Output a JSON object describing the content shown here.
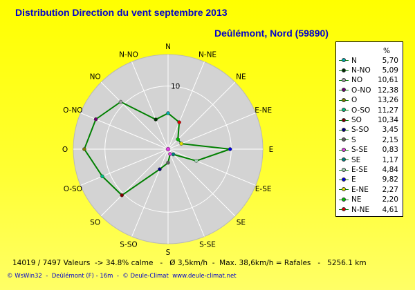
{
  "title": "Distribution Direction du vent   septembre 2013",
  "subtitle": "Deûlémont, Nord (59890)",
  "footer_line1": "14019 / 7497 Valeurs  -> 34.8% calme   -   Ø 3,5km/h  -  Max. 38,6km/h = Rafales   -   5256.1 km",
  "footer_line2": "© WsWin32  -  Deûlémont (F) - 16m  -  © Deule-Climat  www.deule-climat.net",
  "legend_unit": "%",
  "chart_data": {
    "type": "radar",
    "title": "Distribution Direction du vent   septembre 2013",
    "subtitle": "Deûlémont, Nord (59890)",
    "unit": "%",
    "rmax": 15,
    "tick_value": 10,
    "tick_label": "10",
    "directions": [
      "N",
      "N-NE",
      "NE",
      "E-NE",
      "E",
      "E-SE",
      "SE",
      "S-SE",
      "S",
      "S-SO",
      "SO",
      "O-SO",
      "O",
      "O-NO",
      "NO",
      "N-NO"
    ],
    "values": [
      5.7,
      4.61,
      2.2,
      2.27,
      9.82,
      4.84,
      1.17,
      0.83,
      2.15,
      3.45,
      10.34,
      11.27,
      13.26,
      12.38,
      10.61,
      5.09
    ],
    "colors": {
      "line": "#008000",
      "disk": "#d3d3d3",
      "axes": "#ffffff"
    },
    "legend": [
      {
        "label": "N",
        "value": "5,70",
        "color": "#00b0b0"
      },
      {
        "label": "N-NO",
        "value": "5,09",
        "color": "#003000"
      },
      {
        "label": "NO",
        "value": "10,61",
        "color": "#a0a0a0"
      },
      {
        "label": "O-NO",
        "value": "12,38",
        "color": "#700070"
      },
      {
        "label": "O",
        "value": "13,26",
        "color": "#808000"
      },
      {
        "label": "O-SO",
        "value": "11,27",
        "color": "#00c080"
      },
      {
        "label": "SO",
        "value": "10,34",
        "color": "#800000"
      },
      {
        "label": "S-SO",
        "value": "3,45",
        "color": "#000080"
      },
      {
        "label": "S",
        "value": "2,15",
        "color": "#606060"
      },
      {
        "label": "S-SE",
        "value": "0,83",
        "color": "#e040e0"
      },
      {
        "label": "SE",
        "value": "1,17",
        "color": "#008080"
      },
      {
        "label": "E-SE",
        "value": "4,84",
        "color": "#a0d0b0"
      },
      {
        "label": "E",
        "value": "9,82",
        "color": "#0000e0"
      },
      {
        "label": "E-NE",
        "value": "2,27",
        "color": "#e0e000"
      },
      {
        "label": "NE",
        "value": "2,20",
        "color": "#00c000"
      },
      {
        "label": "N-NE",
        "value": "4,61",
        "color": "#e00000"
      }
    ]
  }
}
